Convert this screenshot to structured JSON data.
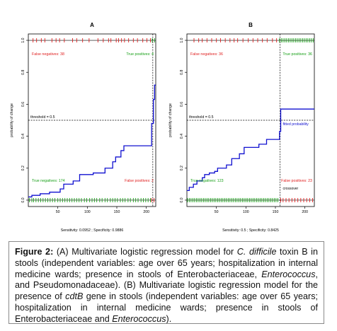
{
  "chart_data": [
    {
      "type": "line",
      "panel_label": "A",
      "xlabel": "",
      "ylabel": "probability of change",
      "xlim": [
        0,
        216
      ],
      "ylim": [
        -0.04,
        1.04
      ],
      "x_ticks": [
        50,
        100,
        150,
        200
      ],
      "y_ticks": [
        "0.0",
        "0.2",
        "0.4",
        "0.6",
        "0.8",
        "1.0"
      ],
      "threshold": 0.5,
      "threshold_label": "threshold = 0.5",
      "vertical_line_x": 211,
      "quadrant_labels": {
        "top_left": "False negatives: 38",
        "top_right": "True positives: 4",
        "bottom_left": "True negatives: 174",
        "bottom_right": "False positives: 2"
      },
      "inline_labels": [],
      "footer": "Sensitivity: 0.0952 ; Specificity: 0.9886",
      "step_curve": [
        [
          0,
          0.02
        ],
        [
          6,
          0.02
        ],
        [
          6,
          0.03
        ],
        [
          20,
          0.03
        ],
        [
          20,
          0.04
        ],
        [
          36,
          0.04
        ],
        [
          36,
          0.05
        ],
        [
          54,
          0.05
        ],
        [
          54,
          0.07
        ],
        [
          60,
          0.07
        ],
        [
          60,
          0.1
        ],
        [
          76,
          0.1
        ],
        [
          76,
          0.12
        ],
        [
          87,
          0.12
        ],
        [
          87,
          0.16
        ],
        [
          110,
          0.16
        ],
        [
          110,
          0.17
        ],
        [
          130,
          0.17
        ],
        [
          130,
          0.2
        ],
        [
          143,
          0.2
        ],
        [
          143,
          0.24
        ],
        [
          148,
          0.24
        ],
        [
          148,
          0.27
        ],
        [
          157,
          0.27
        ],
        [
          157,
          0.31
        ],
        [
          162,
          0.31
        ],
        [
          162,
          0.34
        ],
        [
          209,
          0.34
        ],
        [
          209,
          0.48
        ],
        [
          212,
          0.48
        ],
        [
          212,
          0.63
        ],
        [
          214,
          0.63
        ],
        [
          214,
          0.72
        ],
        [
          216,
          0.72
        ]
      ],
      "rug_top_red": [
        8,
        14,
        22,
        28,
        40,
        47,
        53,
        61,
        75,
        82,
        92,
        103,
        118,
        127,
        136,
        140,
        149,
        153,
        158,
        163,
        170,
        178,
        185,
        194,
        201,
        207
      ],
      "rug_top_green": [
        210,
        214
      ],
      "rug_bottom_green": [
        2,
        6,
        9,
        13,
        17,
        21,
        25,
        29,
        33,
        37,
        41,
        45,
        50,
        54,
        58,
        62,
        66,
        70,
        74,
        78,
        82,
        86,
        90,
        95,
        99,
        104,
        108,
        112,
        116,
        121,
        125,
        130,
        134,
        139,
        143,
        147,
        151,
        156,
        160,
        164,
        169,
        173,
        178,
        182,
        186,
        191,
        195,
        199,
        203,
        207
      ],
      "rug_bottom_red": [
        209,
        213
      ]
    },
    {
      "type": "line",
      "panel_label": "B",
      "xlabel": "",
      "ylabel": "probability of change",
      "xlim": [
        0,
        216
      ],
      "ylim": [
        -0.04,
        1.04
      ],
      "x_ticks": [
        50,
        100,
        150,
        200
      ],
      "y_ticks": [
        "0.0",
        "0.2",
        "0.4",
        "0.6",
        "0.8",
        "1.0"
      ],
      "threshold": 0.5,
      "threshold_label": "threshold = 0.5",
      "vertical_line_x": 158,
      "quadrant_labels": {
        "top_left": "False negatives: 36",
        "top_right": "True positives: 36",
        "bottom_left": "True negatives: 123",
        "bottom_right": "False positives: 23"
      },
      "inline_labels": [
        "fitted probability",
        "crossover"
      ],
      "footer": "Sensitivity: 0.5 ; Specificity: 0.8425",
      "step_curve": [
        [
          0,
          0.06
        ],
        [
          4,
          0.06
        ],
        [
          4,
          0.08
        ],
        [
          11,
          0.08
        ],
        [
          11,
          0.1
        ],
        [
          17,
          0.1
        ],
        [
          17,
          0.12
        ],
        [
          26,
          0.12
        ],
        [
          26,
          0.14
        ],
        [
          30,
          0.14
        ],
        [
          30,
          0.16
        ],
        [
          38,
          0.16
        ],
        [
          38,
          0.17
        ],
        [
          47,
          0.17
        ],
        [
          47,
          0.18
        ],
        [
          52,
          0.18
        ],
        [
          52,
          0.2
        ],
        [
          67,
          0.2
        ],
        [
          67,
          0.22
        ],
        [
          76,
          0.22
        ],
        [
          76,
          0.26
        ],
        [
          89,
          0.26
        ],
        [
          89,
          0.29
        ],
        [
          97,
          0.29
        ],
        [
          97,
          0.33
        ],
        [
          122,
          0.33
        ],
        [
          122,
          0.35
        ],
        [
          135,
          0.35
        ],
        [
          135,
          0.38
        ],
        [
          157,
          0.38
        ],
        [
          157,
          0.43
        ],
        [
          159,
          0.43
        ],
        [
          159,
          0.57
        ],
        [
          216,
          0.57
        ]
      ],
      "rug_top_red": [
        12,
        20,
        26,
        34,
        42,
        50,
        57,
        65,
        73,
        80,
        86,
        95,
        104,
        112,
        120,
        128,
        136,
        145,
        152
      ],
      "rug_top_green": [
        157,
        160,
        163,
        166,
        169,
        172,
        175,
        178,
        181,
        184,
        187,
        190,
        193,
        196,
        199,
        202,
        205,
        208,
        211,
        214
      ],
      "rug_bottom_green": [
        1,
        4,
        7,
        10,
        13,
        16,
        19,
        22,
        25,
        28,
        31,
        34,
        37,
        40,
        43,
        46,
        49,
        52,
        55,
        58,
        61,
        64,
        67,
        70,
        73,
        76,
        79,
        82,
        85,
        88,
        91,
        94,
        97,
        100,
        103,
        106,
        109,
        112,
        115,
        118,
        121,
        124,
        127,
        130,
        133,
        136,
        139,
        142,
        145,
        148,
        151,
        154
      ],
      "rug_bottom_red": [
        159,
        163,
        168,
        173,
        178,
        183,
        188,
        193,
        198,
        203,
        208,
        213
      ]
    }
  ],
  "caption": {
    "label": "Figure 2:",
    "t1": " (A) Multivariate logistic regression model for ",
    "i1": "C. difficile",
    "t2": " toxin B in stools (independent variables: age over 65 years; hospitalization in internal medicine wards; presence in stools of Enterobacteriaceae, ",
    "i2": "Enterococcus",
    "t3": ", and Pseudomonadaceae). (B) Multivariate logistic regression model for the presence of ",
    "i3": "cdtB",
    "t4": " gene in stools (independent variables: age over 65 years; hospitalization in internal medicine wards; presence in stools of Enterobacteriaceae and ",
    "i4": "Enterococcus",
    "t5": ")."
  },
  "colors": {
    "curve": "#1010d0",
    "red": "#e02020",
    "green": "#18a018",
    "axis": "#000000"
  }
}
